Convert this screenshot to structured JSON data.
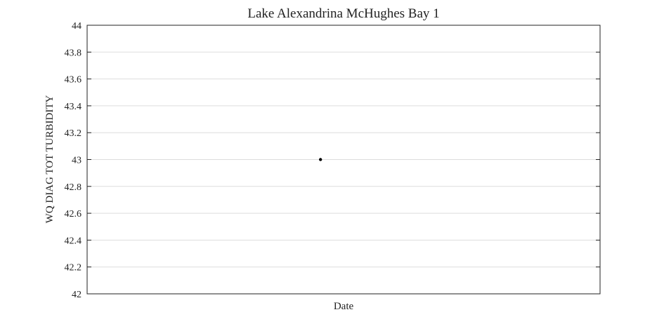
{
  "chart_data": {
    "type": "scatter",
    "title": "Lake Alexandrina McHughes Bay 1",
    "xlabel": "Date",
    "ylabel": "WQ DIAG TOT TURBIDITY",
    "ylim": [
      42,
      44
    ],
    "yticks": [
      "42",
      "42.2",
      "42.4",
      "42.6",
      "42.8",
      "43",
      "43.2",
      "43.4",
      "43.6",
      "43.8",
      "44"
    ],
    "xticks": [],
    "grid": true,
    "series": [
      {
        "x": [
          0.455
        ],
        "y": [
          43.0
        ]
      }
    ],
    "colors": {
      "marker": "#000000",
      "grid": "#dddddd",
      "axis": "#222222"
    }
  }
}
